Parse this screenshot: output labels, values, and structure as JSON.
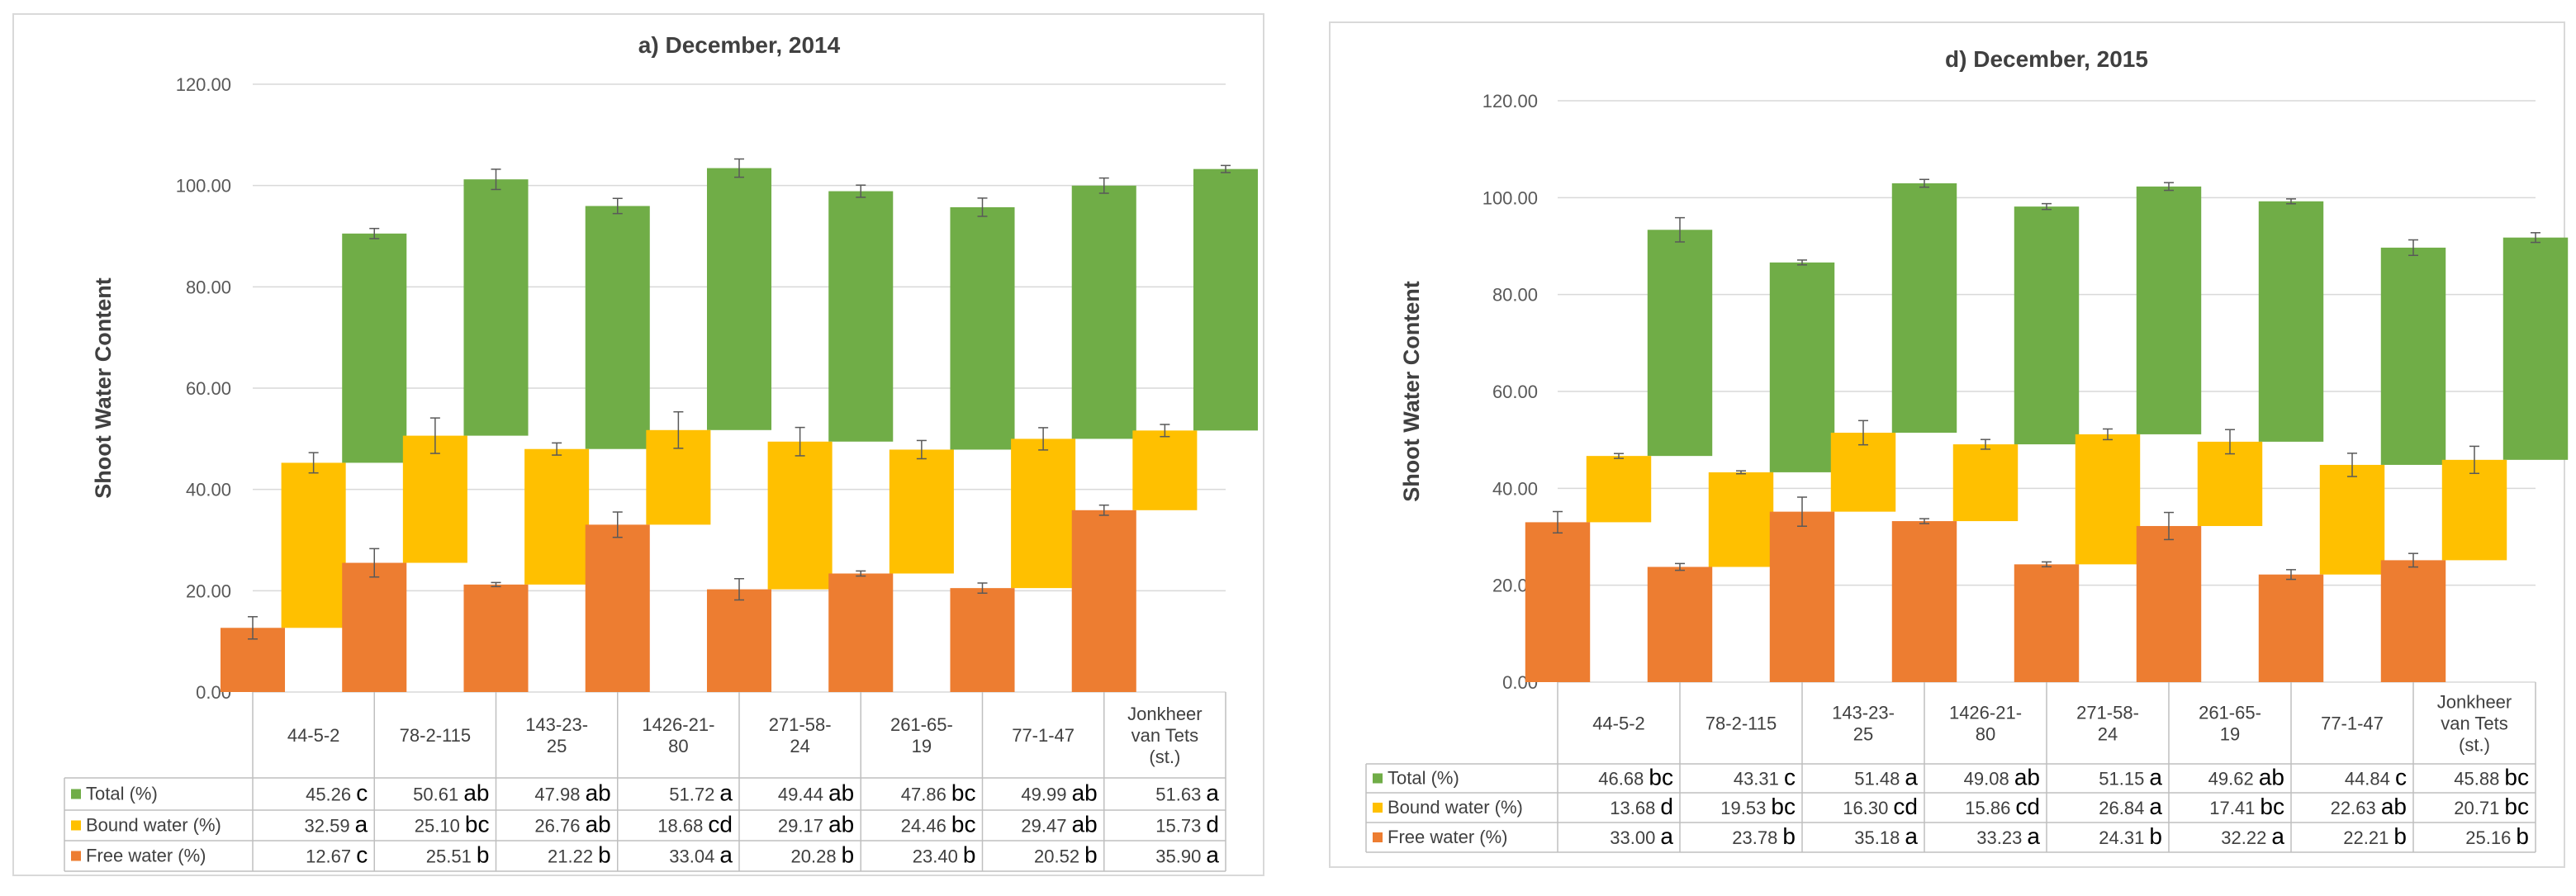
{
  "chart_data": [
    {
      "type": "bar",
      "title": "a) December, 2014",
      "ylabel": "Shoot Water Content",
      "xlabel": "",
      "ylim": [
        0,
        120
      ],
      "yticks": [
        "0.00",
        "20.00",
        "40.00",
        "60.00",
        "80.00",
        "100.00",
        "120.00"
      ],
      "categories": [
        [
          "44-5-2"
        ],
        [
          "78-2-115"
        ],
        [
          "143-23-",
          "25"
        ],
        [
          "1426-21-",
          "80"
        ],
        [
          "271-58-",
          "24"
        ],
        [
          "261-65-",
          "19"
        ],
        [
          "77-1-47"
        ],
        [
          "Jonkheer",
          "van Tets",
          "(st.)"
        ]
      ],
      "series": [
        {
          "name": "Total (%)",
          "color": "#70ad47",
          "values": [
            45.26,
            50.61,
            47.98,
            51.72,
            49.44,
            47.86,
            49.99,
            51.63
          ],
          "bases": [
            45.26,
            50.61,
            47.98,
            51.72,
            49.44,
            47.86,
            49.99,
            51.63
          ],
          "tops": [
            90.52,
            101.22,
            95.96,
            103.44,
            98.88,
            95.72,
            99.98,
            103.26
          ],
          "errors": [
            1.0,
            2.0,
            1.5,
            1.8,
            1.2,
            1.8,
            1.5,
            0.7
          ],
          "display": [
            "45.26",
            "50.61",
            "47.98",
            "51.72",
            "49.44",
            "47.86",
            "49.99",
            "51.63"
          ],
          "letters": [
            "c",
            "ab",
            "ab",
            "a",
            "ab",
            "bc",
            "ab",
            "a"
          ]
        },
        {
          "name": "Bound water (%)",
          "color": "#ffc000",
          "values": [
            32.59,
            25.1,
            26.76,
            18.68,
            29.17,
            24.46,
            29.47,
            15.73
          ],
          "bases": [
            12.67,
            25.51,
            21.22,
            33.04,
            20.28,
            23.4,
            20.52,
            35.9
          ],
          "tops": [
            45.26,
            50.61,
            47.98,
            51.72,
            49.44,
            47.86,
            49.99,
            51.63
          ],
          "errors": [
            2.0,
            3.5,
            1.2,
            3.6,
            2.8,
            1.8,
            2.2,
            1.2
          ],
          "display": [
            "32.59",
            "25.10",
            "26.76",
            "18.68",
            "29.17",
            "24.46",
            "29.47",
            "15.73"
          ],
          "letters": [
            "a",
            "bc",
            "ab",
            "cd",
            "ab",
            "bc",
            "ab",
            "d"
          ]
        },
        {
          "name": "Free water (%)",
          "color": "#ed7d31",
          "values": [
            12.67,
            25.51,
            21.22,
            33.04,
            20.28,
            23.4,
            20.52,
            35.9
          ],
          "bases": [
            0,
            0,
            0,
            0,
            0,
            0,
            0,
            0
          ],
          "tops": [
            12.67,
            25.51,
            21.22,
            33.04,
            20.28,
            23.4,
            20.52,
            35.9
          ],
          "errors": [
            2.2,
            2.8,
            0.4,
            2.5,
            2.1,
            0.5,
            1.0,
            1.0
          ],
          "display": [
            "12.67",
            "25.51",
            "21.22",
            "33.04",
            "20.28",
            "23.40",
            "20.52",
            "35.90"
          ],
          "letters": [
            "c",
            "b",
            "b",
            "a",
            "b",
            "b",
            "b",
            "a"
          ]
        }
      ]
    },
    {
      "type": "bar",
      "title": "d) December, 2015",
      "ylabel": "Shoot Water Content",
      "xlabel": "",
      "ylim": [
        0,
        120
      ],
      "yticks": [
        "0.00",
        "20.00",
        "40.00",
        "60.00",
        "80.00",
        "100.00",
        "120.00"
      ],
      "categories": [
        [
          "44-5-2"
        ],
        [
          "78-2-115"
        ],
        [
          "143-23-",
          "25"
        ],
        [
          "1426-21-",
          "80"
        ],
        [
          "271-58-",
          "24"
        ],
        [
          "261-65-",
          "19"
        ],
        [
          "77-1-47"
        ],
        [
          "Jonkheer",
          "van Tets",
          "(st.)"
        ]
      ],
      "series": [
        {
          "name": "Total (%)",
          "color": "#70ad47",
          "values": [
            46.68,
            43.31,
            51.48,
            49.08,
            51.15,
            49.62,
            44.84,
            45.88
          ],
          "bases": [
            46.68,
            43.31,
            51.48,
            49.08,
            51.15,
            49.62,
            44.84,
            45.88
          ],
          "tops": [
            93.36,
            86.62,
            102.96,
            98.16,
            102.3,
            99.24,
            89.68,
            91.76
          ],
          "errors": [
            2.5,
            0.5,
            0.8,
            0.6,
            0.8,
            0.5,
            1.6,
            1.0
          ],
          "display": [
            "46.68",
            "43.31",
            "51.48",
            "49.08",
            "51.15",
            "49.62",
            "44.84",
            "45.88"
          ],
          "letters": [
            "bc",
            "c",
            "a",
            "ab",
            "a",
            "ab",
            "c",
            "bc"
          ]
        },
        {
          "name": "Bound water (%)",
          "color": "#ffc000",
          "values": [
            13.68,
            19.53,
            16.3,
            15.86,
            26.84,
            17.41,
            22.63,
            20.71
          ],
          "bases": [
            33.0,
            23.78,
            35.18,
            33.23,
            24.31,
            32.22,
            22.21,
            25.16
          ],
          "tops": [
            46.68,
            43.31,
            51.48,
            49.08,
            51.15,
            49.62,
            44.84,
            45.88
          ],
          "errors": [
            0.5,
            0.3,
            2.5,
            1.0,
            1.1,
            2.5,
            2.4,
            2.8
          ],
          "display": [
            "13.68",
            "19.53",
            "16.30",
            "15.86",
            "26.84",
            "17.41",
            "22.63",
            "20.71"
          ],
          "letters": [
            "d",
            "bc",
            "cd",
            "cd",
            "a",
            "bc",
            "ab",
            "bc"
          ]
        },
        {
          "name": "Free water (%)",
          "color": "#ed7d31",
          "values": [
            33.0,
            23.78,
            35.18,
            33.23,
            24.31,
            32.22,
            22.21,
            25.16
          ],
          "bases": [
            0,
            0,
            0,
            0,
            0,
            0,
            0,
            0
          ],
          "tops": [
            33.0,
            23.78,
            35.18,
            33.23,
            24.31,
            32.22,
            22.21,
            25.16
          ],
          "errors": [
            2.2,
            0.7,
            3.0,
            0.5,
            0.5,
            2.8,
            1.0,
            1.4
          ],
          "display": [
            "33.00",
            "23.78",
            "35.18",
            "33.23",
            "24.31",
            "32.22",
            "22.21",
            "25.16"
          ],
          "letters": [
            "a",
            "b",
            "a",
            "a",
            "b",
            "a",
            "b",
            "b"
          ]
        }
      ]
    }
  ]
}
